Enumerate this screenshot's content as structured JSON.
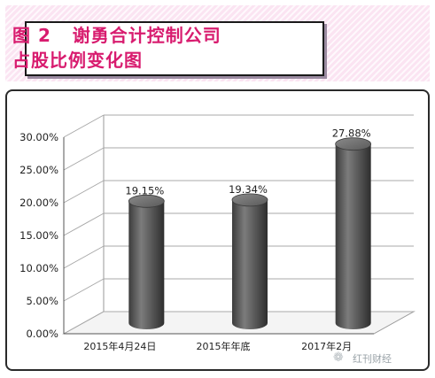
{
  "title": "图 2   谢勇合计控制公司\n占股比例变化图",
  "watermark": "红刊财经",
  "chart_data": {
    "type": "bar",
    "title": "图 2   谢勇合计控制公司占股比例变化图",
    "categories": [
      "2015年4月24日",
      "2015年年底",
      "2017年2月"
    ],
    "values": [
      19.15,
      19.34,
      27.88
    ],
    "data_labels": [
      "19.15%",
      "19.34%",
      "27.88%"
    ],
    "ylim": [
      0,
      30
    ],
    "yticks": [
      "0.00%",
      "5.00%",
      "10.00%",
      "15.00%",
      "20.00%",
      "25.00%",
      "30.00%"
    ],
    "xlabel": "",
    "ylabel": "",
    "grid": true,
    "style": "3d-cylinder",
    "bar_color": "#5a5a5a"
  }
}
